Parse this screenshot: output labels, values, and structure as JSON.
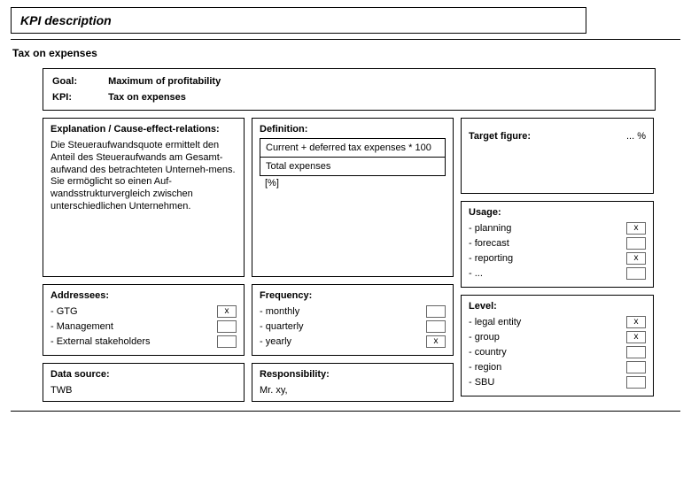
{
  "page": {
    "title": "KPI description",
    "section_title": "Tax on expenses"
  },
  "header": {
    "goal_label": "Goal:",
    "goal_value": "Maximum of profitability",
    "kpi_label": "KPI:",
    "kpi_value": "Tax on expenses"
  },
  "explanation": {
    "title": "Explanation / Cause-effect-relations:",
    "text": "Die Steueraufwandsquote ermittelt den Anteil des Steueraufwands am Gesamt-aufwand des betrachteten Unterneh-mens. Sie ermöglicht so einen Auf-wandsstrukturvergleich zwischen unterschiedlichen Unternehmen."
  },
  "definition": {
    "title": "Definition:",
    "numerator": "Current + deferred tax expenses * 100",
    "denominator": "Total expenses",
    "unit": "[%]"
  },
  "target": {
    "label": "Target figure:",
    "value": "... %"
  },
  "usage": {
    "title": "Usage:",
    "items": [
      {
        "label": "- planning",
        "checked": "x"
      },
      {
        "label": "- forecast",
        "checked": ""
      },
      {
        "label": "- reporting",
        "checked": "x"
      },
      {
        "label": "- ...",
        "checked": ""
      }
    ]
  },
  "addressees": {
    "title": "Addressees:",
    "items": [
      {
        "label": "- GTG",
        "checked": "x"
      },
      {
        "label": "- Management",
        "checked": ""
      },
      {
        "label": "- External stakeholders",
        "checked": ""
      }
    ]
  },
  "frequency": {
    "title": "Frequency:",
    "items": [
      {
        "label": "- monthly",
        "checked": ""
      },
      {
        "label": "- quarterly",
        "checked": ""
      },
      {
        "label": "- yearly",
        "checked": "x"
      }
    ]
  },
  "level": {
    "title": "Level:",
    "items": [
      {
        "label": "- legal entity",
        "checked": "x"
      },
      {
        "label": "- group",
        "checked": "x"
      },
      {
        "label": "- country",
        "checked": ""
      },
      {
        "label": "- region",
        "checked": ""
      },
      {
        "label": "- SBU",
        "checked": ""
      }
    ]
  },
  "datasource": {
    "title": "Data source:",
    "value": "TWB"
  },
  "responsibility": {
    "title": "Responsibility:",
    "value": "Mr. xy,"
  }
}
